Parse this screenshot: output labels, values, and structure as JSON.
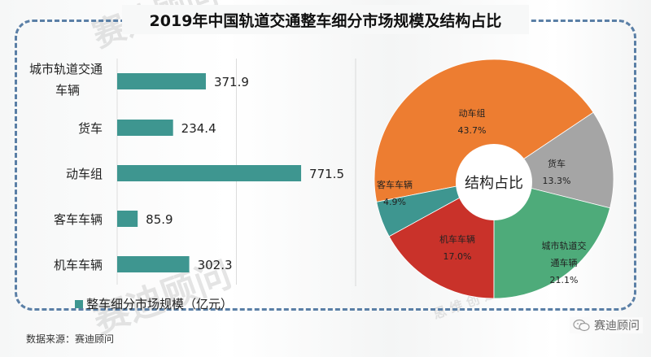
{
  "title": "2019年中国轨道交通整车细分市场规模及结构占比",
  "source": "数据来源：赛迪顾问",
  "brand": "赛迪顾问",
  "watermark": "赛迪顾问",
  "watermark_sub": "思 维 创 造",
  "colors": {
    "bar": "#3e9690",
    "frame": "#5a7fa6",
    "dongchezu": "#ed7d31",
    "huoche": "#a5a5a5",
    "chengshi": "#4eab7a",
    "jiche": "#c9322a",
    "keche": "#3e9690"
  },
  "chart_data": [
    {
      "type": "bar",
      "orientation": "horizontal",
      "title": "",
      "categories": [
        "城市轨道交通车辆",
        "货车",
        "动车组",
        "客车车辆",
        "机车车辆"
      ],
      "category_lines": [
        [
          "城市轨道交通",
          "车辆"
        ],
        [
          "货车"
        ],
        [
          "动车组"
        ],
        [
          "客车车辆"
        ],
        [
          "机车车辆"
        ]
      ],
      "series": [
        {
          "name": "整车细分市场规模（亿元）",
          "values": [
            371.9,
            234.4,
            771.5,
            85.9,
            302.3
          ]
        }
      ],
      "value_labels": [
        "371.9",
        "234.4",
        "771.5",
        "85.9",
        "302.3"
      ],
      "xlim": [
        0,
        1000
      ],
      "grid": true,
      "legend": {
        "entries": [
          "整车细分市场规模（亿元）"
        ],
        "position": "bottom-left"
      },
      "xlabel": "",
      "ylabel": ""
    },
    {
      "type": "pie",
      "donut": true,
      "center_label": "结构占比",
      "slices": [
        {
          "name": "动车组",
          "lines": [
            "动车组"
          ],
          "value": 43.7,
          "label": "43.7%",
          "color": "#ed7d31"
        },
        {
          "name": "货车",
          "lines": [
            "货车"
          ],
          "value": 13.3,
          "label": "13.3%",
          "color": "#a5a5a5"
        },
        {
          "name": "城市轨道交通车辆",
          "lines": [
            "城市轨道交",
            "通车辆"
          ],
          "value": 21.1,
          "label": "21.1%",
          "color": "#4eab7a"
        },
        {
          "name": "机车车辆",
          "lines": [
            "机车车辆"
          ],
          "value": 17.0,
          "label": "17.0%",
          "color": "#c9322a"
        },
        {
          "name": "客车车辆",
          "lines": [
            "客车车辆"
          ],
          "value": 4.9,
          "label": "4.9%",
          "color": "#3e9690"
        }
      ]
    }
  ]
}
